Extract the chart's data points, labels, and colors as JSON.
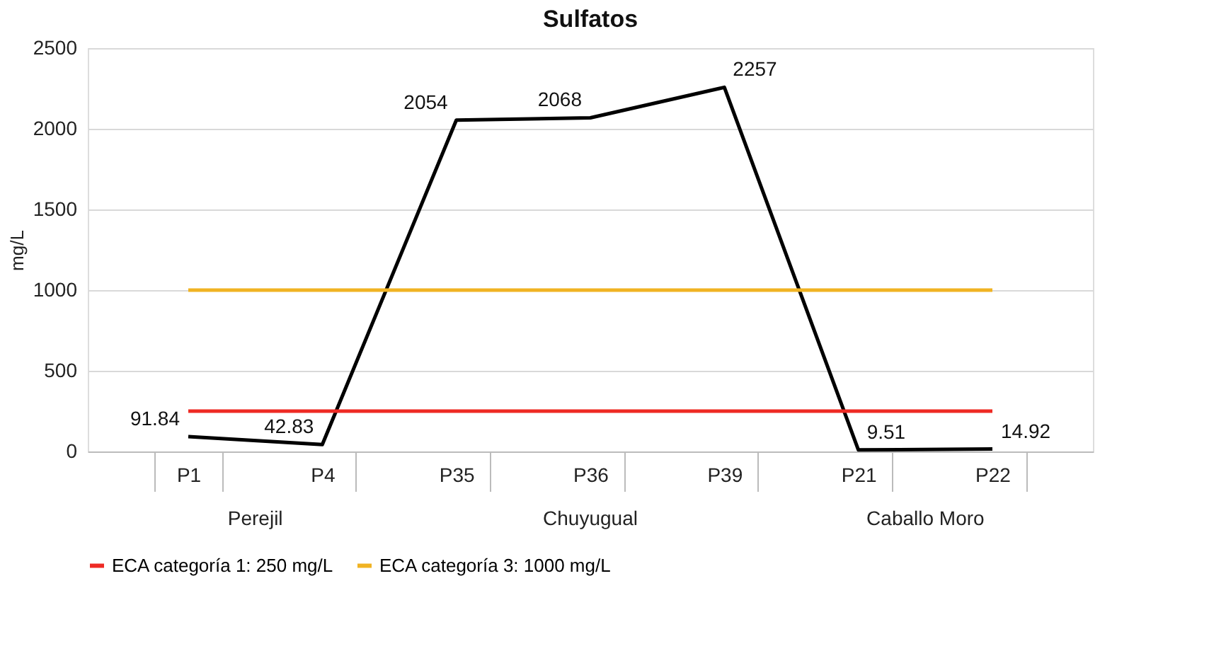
{
  "chart_data": {
    "type": "line",
    "title": "Sulfatos",
    "ylabel": "mg/L",
    "categories": [
      "P1",
      "P4",
      "P35",
      "P36",
      "P39",
      "P21",
      "P22"
    ],
    "series": [
      {
        "color": "#000000",
        "values": [
          91.84,
          42.83,
          2054,
          2068,
          2257,
          9.51,
          14.92
        ],
        "value_labels": [
          "91.84",
          "42.83",
          "2054",
          "2068",
          "2257",
          "9.51",
          "14.92"
        ]
      },
      {
        "name": "ECA categoría 1: 250 mg/L",
        "color": "#ee2a24",
        "values": [
          250,
          250,
          250,
          250,
          250,
          250,
          250
        ]
      },
      {
        "name": "ECA categoría 3: 1000 mg/L",
        "color": "#f0b323",
        "values": [
          1000,
          1000,
          1000,
          1000,
          1000,
          1000,
          1000
        ]
      }
    ],
    "annotations": [
      "Perejil",
      "Chuyugual",
      "Caballo Moro"
    ],
    "ylim": [
      0,
      2500
    ],
    "yticks": [
      0,
      500,
      1000,
      1500,
      2000,
      2500
    ],
    "grid": "y",
    "legend": "bottom",
    "marker": "none",
    "line_style": "solid"
  }
}
